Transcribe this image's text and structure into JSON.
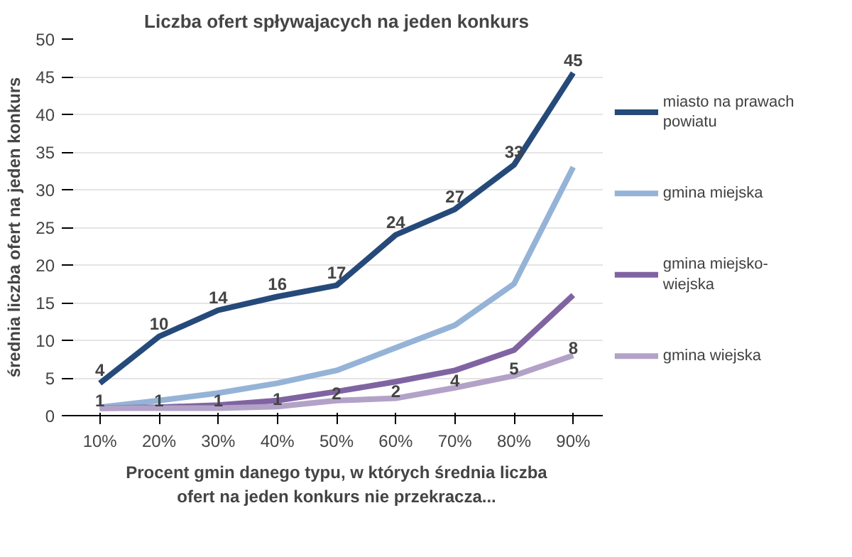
{
  "chart_data": {
    "type": "line",
    "title": "Liczba ofert spływajacych na jeden konkurs",
    "xlabel": "Procent gmin danego typu, w których średnia liczba ofert na jeden konkurs nie przekracza...",
    "ylabel": "średnia liczba ofert na jeden konkurs",
    "categories": [
      "10%",
      "20%",
      "30%",
      "40%",
      "50%",
      "60%",
      "70%",
      "80%",
      "90%"
    ],
    "series": [
      {
        "name": "miasto na prawach powiatu",
        "color": "#254a7a",
        "values": [
          4.3,
          10.5,
          14,
          15.8,
          17.3,
          24,
          27.4,
          33.3,
          45.5
        ],
        "value_labels": [
          "4",
          "10",
          "14",
          "16",
          "17",
          "24",
          "27",
          "33",
          "45"
        ]
      },
      {
        "name": "gmina miejska",
        "color": "#95b3d7",
        "values": [
          1.1,
          2,
          3,
          4.3,
          6,
          9,
          12,
          17.5,
          33
        ]
      },
      {
        "name": "gmina miejsko-wiejska",
        "color": "#8064a2",
        "values": [
          1,
          1.1,
          1.4,
          2,
          3.2,
          4.5,
          6,
          8.7,
          16
        ]
      },
      {
        "name": "gmina wiejska",
        "color": "#b3a2c7",
        "values": [
          1,
          1,
          1,
          1.2,
          2,
          2.3,
          3.7,
          5.3,
          8
        ],
        "value_labels": [
          "1",
          "1",
          "1",
          "1",
          "2",
          "2",
          "4",
          "5",
          "8"
        ]
      }
    ],
    "ylim": [
      0,
      50
    ],
    "yticks": [
      0,
      5,
      10,
      15,
      20,
      25,
      30,
      35,
      40,
      45,
      50
    ],
    "grid": "y",
    "legend": "right",
    "line_style": "solid",
    "marker": "none"
  }
}
